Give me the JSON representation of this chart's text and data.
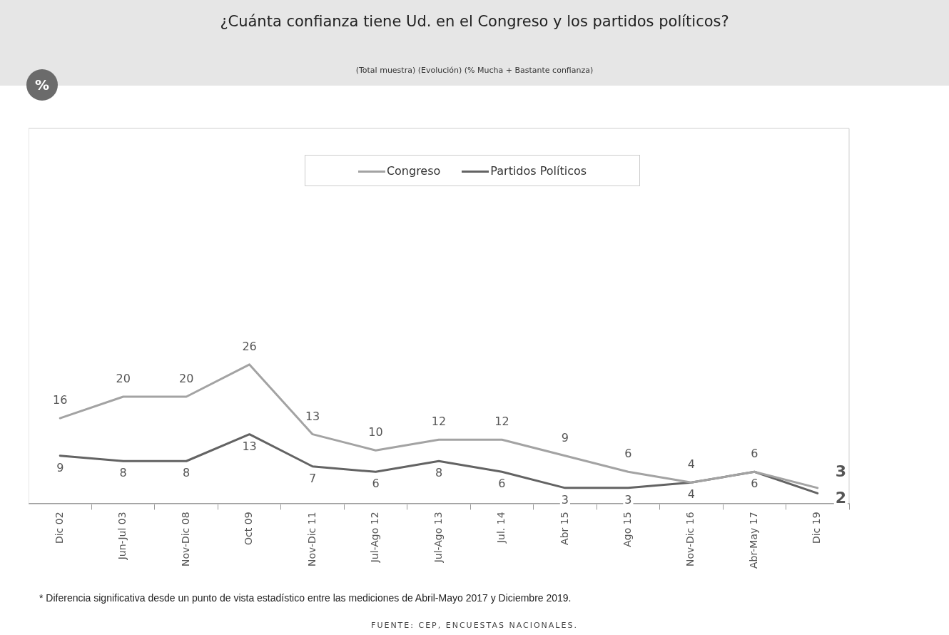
{
  "chart_data": {
    "type": "line",
    "title": "¿Cuánta confianza tiene Ud. en el Congreso y los partidos políticos?",
    "subtitle": "(Total muestra) (Evolución) (% Mucha + Bastante confianza)",
    "categories": [
      "Dic 02",
      "Jun-Jul 03",
      "Nov-Dic 08",
      "Oct 09",
      "Nov-Dic 11",
      "Jul-Ago 12",
      "Jul-Ago 13",
      "Jul. 14",
      "Abr 15",
      "Ago 15",
      "Nov-Dic 16",
      "Abr-May 17",
      "Dic 19"
    ],
    "series": [
      {
        "name": "Congreso",
        "color": "#a3a3a3",
        "values": [
          16,
          20,
          20,
          26,
          13,
          10,
          12,
          12,
          9,
          6,
          4,
          6,
          3
        ]
      },
      {
        "name": "Partidos Políticos",
        "color": "#636363",
        "values": [
          9,
          8,
          8,
          13,
          7,
          6,
          8,
          6,
          3,
          3,
          4,
          6,
          2
        ]
      }
    ],
    "data_labels": true,
    "legend": "top",
    "grid": false,
    "marker": "none",
    "line_style": "solid",
    "annotations": [
      "%",
      "* Diferencia significativa desde un punto de vista estadístico entre las mediciones de Abril-Mayo 2017 y Diciembre 2019.",
      "FUENTE: CEP, ENCUESTAS NACIONALES."
    ]
  }
}
